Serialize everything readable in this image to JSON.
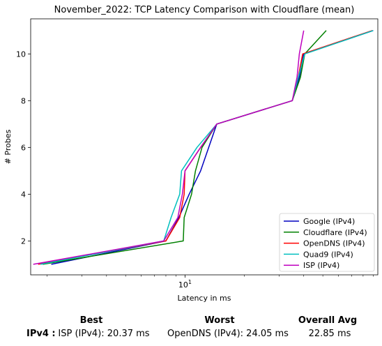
{
  "chart_data": {
    "type": "line",
    "title": "November_2022: TCP Latency Comparison with Cloudflare (mean)",
    "xlabel": "Latency in ms",
    "ylabel": "# Probes",
    "xscale": "log",
    "xlim": [
      1.65,
      95
    ],
    "ylim": [
      0.55,
      11.5
    ],
    "yticks": [
      2,
      4,
      6,
      8,
      10
    ],
    "ytick_labels": [
      "2",
      "4",
      "6",
      "8",
      "10"
    ],
    "xticks": [
      10
    ],
    "xtick_labels": [
      "10"
    ],
    "grid": false,
    "legend": "lower-right",
    "series": [
      {
        "name": "Google (IPv4)",
        "color": "#0000bf",
        "x": [
          2.1,
          8.0,
          9.3,
          10.5,
          12.0,
          14.5,
          35.0,
          38.0,
          40.0,
          90.0
        ],
        "y": [
          1,
          2,
          3,
          4,
          5,
          7,
          8,
          9,
          10,
          11
        ]
      },
      {
        "name": "Cloudflare (IPv4)",
        "color": "#008000",
        "x": [
          1.9,
          9.8,
          9.9,
          10.8,
          11.3,
          12.2,
          14.5,
          35.0,
          38.5,
          40.5,
          52.0
        ],
        "y": [
          1,
          2,
          3,
          4,
          5,
          6,
          7,
          8,
          9,
          10,
          11
        ]
      },
      {
        "name": "OpenDNS (IPv4)",
        "color": "#ff0000",
        "x": [
          1.8,
          8.0,
          9.4,
          9.9,
          10.0,
          12.0,
          14.5,
          35.0,
          37.5,
          39.5,
          89.0
        ],
        "y": [
          1,
          2,
          3,
          4,
          5,
          6,
          7,
          8,
          9,
          10,
          11
        ]
      },
      {
        "name": "Quad9 (IPv4)",
        "color": "#00bfbf",
        "x": [
          1.85,
          7.8,
          8.5,
          9.4,
          9.6,
          11.5,
          14.5,
          35.0,
          37.5,
          40.5,
          90.0
        ],
        "y": [
          1,
          2,
          3,
          4,
          5,
          6,
          7,
          8,
          9,
          10,
          11
        ]
      },
      {
        "name": "ISP (IPv4)",
        "color": "#bf00bf",
        "x": [
          1.7,
          7.8,
          9.2,
          9.7,
          10.0,
          12.0,
          14.5,
          35.0,
          37.0,
          38.0,
          40.0
        ],
        "y": [
          1,
          2,
          3,
          4,
          5,
          6,
          7,
          8,
          9,
          10,
          11
        ]
      }
    ]
  },
  "summary": {
    "best_header": "Best",
    "worst_header": "Worst",
    "avg_header": "Overall Avg",
    "row_label": "IPv4 :",
    "best_value": "ISP (IPv4): 20.37 ms",
    "worst_value": "OpenDNS (IPv4): 24.05 ms",
    "avg_value": "22.85 ms"
  }
}
